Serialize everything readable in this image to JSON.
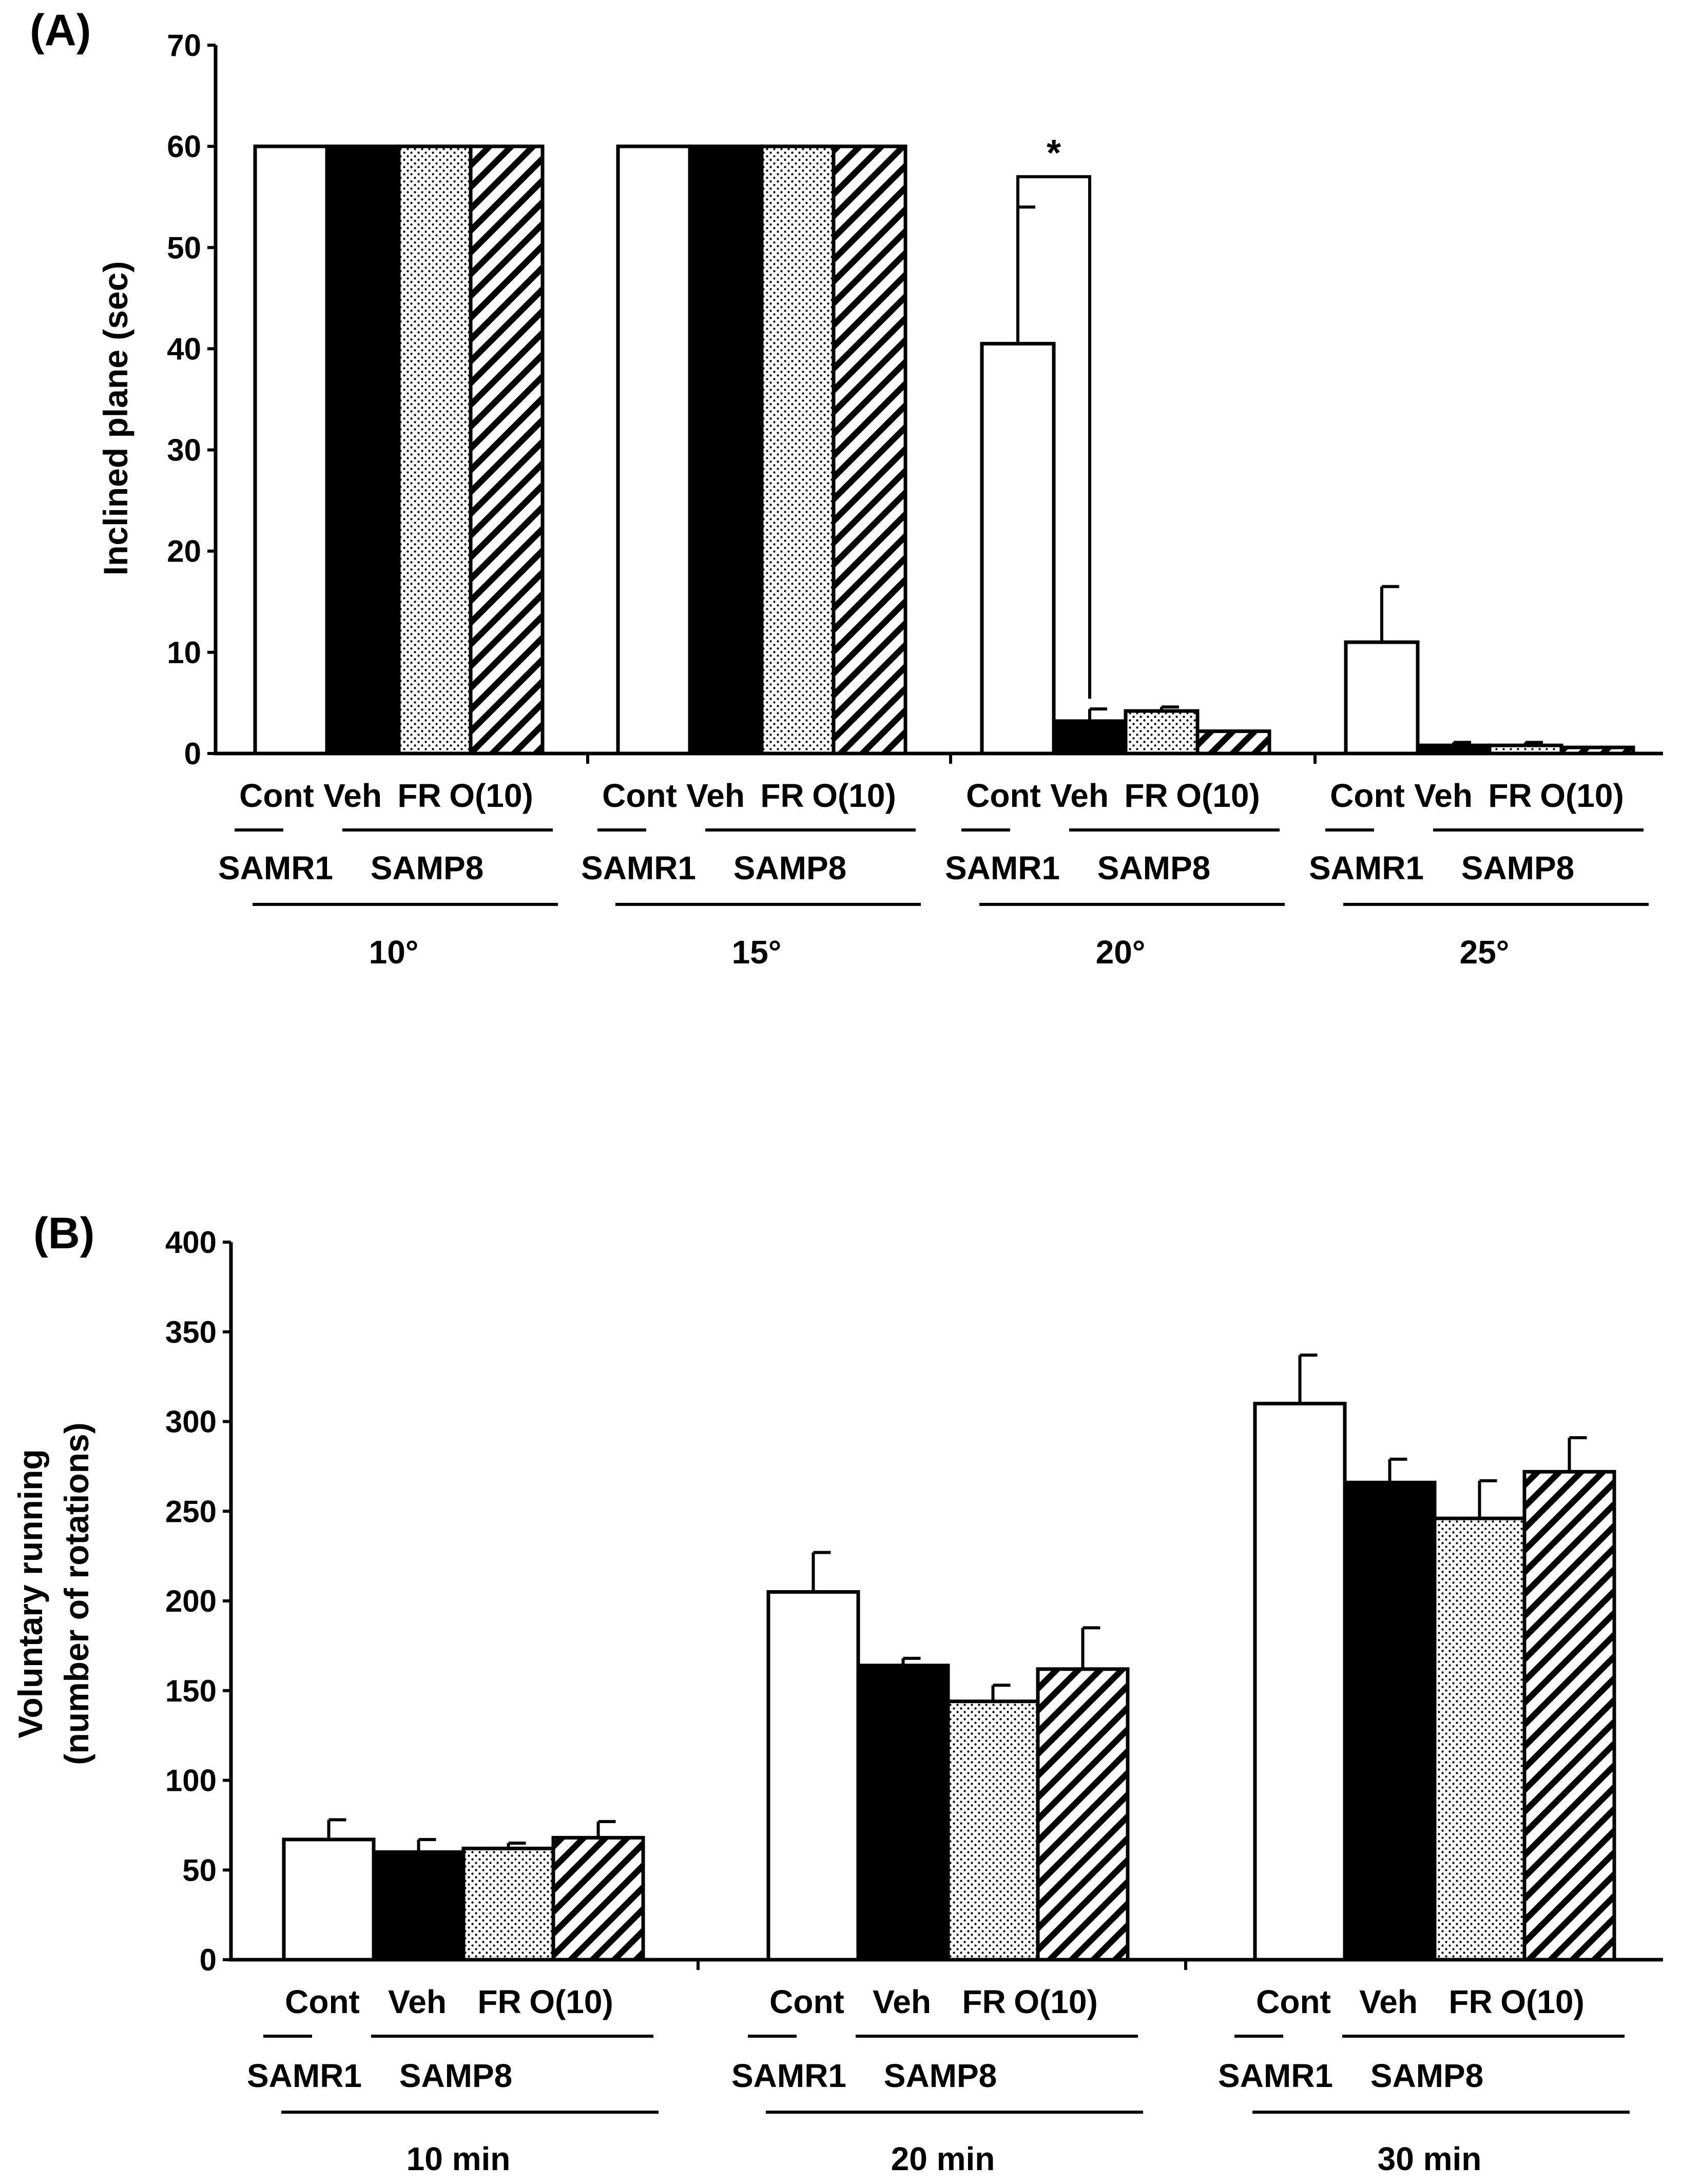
{
  "chart_data": [
    {
      "panel_label": "(A)",
      "type": "bar",
      "ylabel": "Inclined plane (sec)",
      "xlabel": "",
      "ylim": [
        0,
        70
      ],
      "yticks": [
        0,
        10,
        20,
        30,
        40,
        50,
        60,
        70
      ],
      "groups": [
        "10°",
        "15°",
        "20°",
        "25°"
      ],
      "treatments": [
        "Cont",
        "Veh",
        "FR",
        "O(10)"
      ],
      "strains": [
        "SAMR1",
        "SAMP8"
      ],
      "series": [
        {
          "name": "Cont",
          "strain": "SAMR1",
          "pattern": "white",
          "values": [
            60,
            60,
            40.5,
            11
          ],
          "errors": [
            0,
            0,
            13.5,
            5.5
          ]
        },
        {
          "name": "Veh",
          "strain": "SAMP8",
          "pattern": "black",
          "values": [
            60,
            60,
            3.2,
            0.8
          ],
          "errors": [
            0,
            0,
            1.2,
            0.3
          ]
        },
        {
          "name": "FR",
          "strain": "SAMP8",
          "pattern": "dotted",
          "values": [
            60,
            60,
            4.2,
            0.8
          ],
          "errors": [
            0,
            0,
            0.4,
            0.3
          ]
        },
        {
          "name": "O(10)",
          "strain": "SAMP8",
          "pattern": "hatched",
          "values": [
            60,
            60,
            2.2,
            0.6
          ],
          "errors": [
            0,
            0,
            0,
            0
          ]
        }
      ],
      "annotations": [
        {
          "text": "*",
          "group": "20°",
          "between": [
            "Cont",
            "Veh"
          ],
          "bracket_y": 57
        }
      ]
    },
    {
      "panel_label": "(B)",
      "type": "bar",
      "ylabel_lines": [
        "Voluntary running",
        "(number of rotations)"
      ],
      "xlabel": "",
      "ylim": [
        0,
        400
      ],
      "yticks": [
        0,
        50,
        100,
        150,
        200,
        250,
        300,
        350,
        400
      ],
      "groups": [
        "10 min",
        "20 min",
        "30 min"
      ],
      "treatments": [
        "Cont",
        "Veh",
        "FR",
        "O(10)"
      ],
      "strains": [
        "SAMR1",
        "SAMP8"
      ],
      "series": [
        {
          "name": "Cont",
          "strain": "SAMR1",
          "pattern": "white",
          "values": [
            67,
            205,
            310
          ],
          "errors": [
            11,
            22,
            27
          ]
        },
        {
          "name": "Veh",
          "strain": "SAMP8",
          "pattern": "black",
          "values": [
            60,
            164,
            266
          ],
          "errors": [
            7,
            4,
            13
          ]
        },
        {
          "name": "FR",
          "strain": "SAMP8",
          "pattern": "dotted",
          "values": [
            62,
            144,
            246
          ],
          "errors": [
            3,
            9,
            21
          ]
        },
        {
          "name": "O(10)",
          "strain": "SAMP8",
          "pattern": "hatched",
          "values": [
            68,
            162,
            272
          ],
          "errors": [
            9,
            23,
            19
          ]
        }
      ],
      "annotations": []
    }
  ]
}
